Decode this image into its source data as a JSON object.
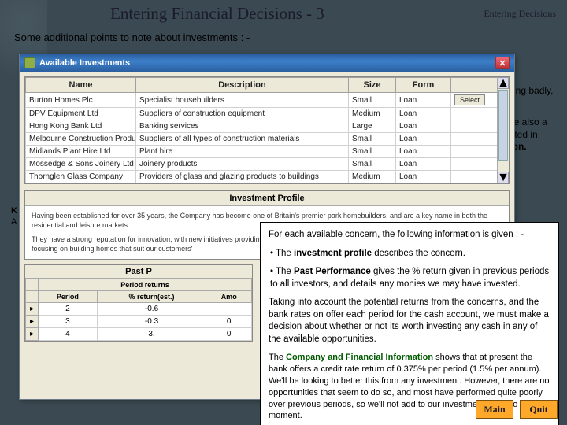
{
  "slide": {
    "title": "Entering Financial Decisions - 3",
    "section": "Entering Decisions",
    "intro": "Some additional points to note about investments : -",
    "bg_color": "#3b4a52"
  },
  "fragments": {
    "right1": "forming badly,",
    "right2a": "re are also a",
    "right2b": "nvested in,",
    "right2c": "button."
  },
  "window": {
    "title": "Available Investments",
    "columns": [
      "Name",
      "Description",
      "Size",
      "Form",
      ""
    ],
    "rows": [
      {
        "name": "Burton Homes Plc",
        "desc": "Specialist housebuilders",
        "size": "Small",
        "form": "Loan",
        "sel": true
      },
      {
        "name": "DPV Equipment Ltd",
        "desc": "Suppliers of construction equipment",
        "size": "Medium",
        "form": "Loan",
        "sel": false
      },
      {
        "name": "Hong Kong Bank Ltd",
        "desc": "Banking services",
        "size": "Large",
        "form": "Loan",
        "sel": false
      },
      {
        "name": "Melbourne Construction Products Ltd",
        "desc": "Suppliers of all types of construction materials",
        "size": "Small",
        "form": "Loan",
        "sel": false
      },
      {
        "name": "Midlands Plant Hire Ltd",
        "desc": "Plant hire",
        "size": "Small",
        "form": "Loan",
        "sel": false
      },
      {
        "name": "Mossedge & Sons Joinery Ltd",
        "desc": "Joinery products",
        "size": "Small",
        "form": "Loan",
        "sel": false
      },
      {
        "name": "Thornglen Glass Company",
        "desc": "Providers of glass and glazing products to buildings",
        "size": "Medium",
        "form": "Loan",
        "sel": false
      }
    ],
    "profile": {
      "header": "Investment Profile",
      "para1": "Having been established for over 35 years, the Company has become one of Britain's premier park homebuilders, and are a key name in both the residential and leisure markets.",
      "para2": "They have a strong reputation for innovation, with new initiatives providing a comprehensive range of related products and services, whilst still focusing on building homes that suit our customers'"
    },
    "perf": {
      "header": "Past P",
      "group": "Period returns",
      "cols": [
        "Period",
        "% return(est.)",
        "Amo"
      ],
      "rows": [
        {
          "p": "2",
          "r": "-0.6",
          "a": ""
        },
        {
          "p": "3",
          "r": "-0.3",
          "a": "0"
        },
        {
          "p": "4",
          "r": "3.",
          "a": "0"
        }
      ]
    }
  },
  "callout": {
    "lead": "For each available concern, the following information is given : -",
    "b1a": "• The ",
    "b1b": "investment profile",
    "b1c": " describes the concern.",
    "b2a": "• The ",
    "b2b": "Past Performance",
    "b2c": " gives the % return given in previous periods to all investors, and details any monies we may have invested.",
    "p3": "Taking into account the potential returns from the concerns, and the bank rates on offer each period for the cash account, we must make a decision about whether or not its worth investing any cash in any of the available opportunities.",
    "p4a": "The ",
    "p4b": "Company and Financial Information",
    "p4c": " shows that at present the bank offers a credit rate return of 0.375% per period (1.5% per annum). We'll be looking to better this from any investment. However, there are no opportunities that seem to do so, and most have performed quite poorly over previous periods, so we'll not add to our investment portfolio at the moment."
  },
  "nav": {
    "main": "Main",
    "quit": "Quit"
  },
  "select_label": "Select"
}
